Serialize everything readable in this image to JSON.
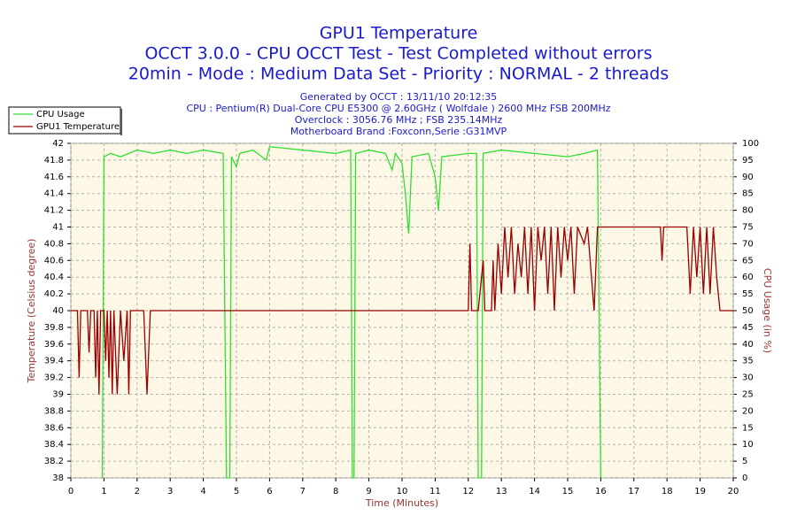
{
  "chart_data": {
    "type": "line",
    "title": "GPU1 Temperature",
    "subtitle": [
      "OCCT 3.0.0 - CPU OCCT Test - Test Completed without errors",
      "20min - Mode : Medium Data Set - Priority : NORMAL - 2 threads"
    ],
    "info": [
      "Generated by OCCT : 13/11/10 20:12:35",
      "CPU : Pentium(R) Dual-Core CPU E5300 @ 2.60GHz ( Wolfdale ) 2600 MHz FSB 200MHz",
      "Overclock : 3056.76 MHz ; FSB 235.14MHz",
      "Motherboard Brand :Foxconn,Serie :G31MVP"
    ],
    "x_label": "Time (Minutes)",
    "y_label": "Temperature (Celsius degree)",
    "y2_label": "CPU Usage (in %)",
    "xlim": [
      0,
      20
    ],
    "xticks": [
      0,
      1,
      2,
      3,
      4,
      5,
      6,
      7,
      8,
      9,
      10,
      11,
      12,
      13,
      14,
      15,
      16,
      17,
      18,
      19,
      20
    ],
    "ylim": [
      38,
      42
    ],
    "yticks": [
      38,
      38.2,
      38.4,
      38.6,
      38.8,
      39,
      39.2,
      39.4,
      39.6,
      39.8,
      40,
      40.2,
      40.4,
      40.6,
      40.8,
      41,
      41.2,
      41.4,
      41.6,
      41.8,
      42
    ],
    "y2lim": [
      0,
      100
    ],
    "y2ticks": [
      0,
      5,
      10,
      15,
      20,
      25,
      30,
      35,
      40,
      45,
      50,
      55,
      60,
      65,
      70,
      75,
      80,
      85,
      90,
      95,
      100
    ],
    "grid": true,
    "legend": "upper left",
    "series": [
      {
        "name": "CPU Usage",
        "color": "#33dd33",
        "axis": "y2",
        "x": [
          0.95,
          1.0,
          1.2,
          1.5,
          2.0,
          2.5,
          3.0,
          3.5,
          4.0,
          4.6,
          4.7,
          4.8,
          4.85,
          5.0,
          5.1,
          5.5,
          5.9,
          6.0,
          7.0,
          8.0,
          8.45,
          8.5,
          8.55,
          8.6,
          9.0,
          9.5,
          9.7,
          9.8,
          10.0,
          10.1,
          10.2,
          10.3,
          10.8,
          11.0,
          11.1,
          11.2,
          12.0,
          12.25,
          12.3,
          12.4,
          12.45,
          13.0,
          14.0,
          15.0,
          15.5,
          15.9,
          16.0
        ],
        "values": [
          0,
          96,
          97,
          96,
          98,
          97,
          98,
          97,
          98,
          97,
          0,
          0,
          96,
          93,
          97,
          98,
          95,
          99,
          98,
          97,
          98,
          0,
          0,
          97,
          98,
          97,
          92,
          97,
          94,
          85,
          73,
          96,
          97,
          90,
          80,
          96,
          97,
          97,
          0,
          0,
          97,
          98,
          97,
          96,
          97,
          98,
          0
        ]
      },
      {
        "name": "GPU1 Temperature",
        "color": "#990000",
        "axis": "y",
        "x": [
          0,
          0.2,
          0.25,
          0.3,
          0.5,
          0.55,
          0.6,
          0.7,
          0.75,
          0.8,
          0.85,
          0.9,
          1.0,
          1.05,
          1.1,
          1.15,
          1.2,
          1.25,
          1.3,
          1.4,
          1.5,
          1.6,
          1.7,
          1.75,
          1.8,
          2.2,
          2.3,
          2.4,
          12.0,
          12.05,
          12.1,
          12.3,
          12.45,
          12.5,
          12.7,
          12.75,
          12.8,
          12.9,
          13.0,
          13.1,
          13.2,
          13.3,
          13.4,
          13.5,
          13.6,
          13.7,
          13.8,
          13.9,
          14.0,
          14.1,
          14.2,
          14.3,
          14.4,
          14.5,
          14.6,
          14.7,
          14.8,
          14.9,
          15.0,
          15.1,
          15.2,
          15.3,
          15.5,
          15.6,
          15.8,
          15.9,
          17.8,
          17.85,
          17.9,
          18.6,
          18.7,
          18.8,
          18.9,
          19.0,
          19.1,
          19.2,
          19.3,
          19.4,
          19.5,
          19.6,
          20
        ],
        "values": [
          40,
          40,
          39.2,
          40,
          40,
          39.5,
          40,
          40,
          39.2,
          40,
          39,
          40,
          40,
          39.4,
          40,
          39.2,
          40,
          39,
          40,
          39,
          40,
          39.4,
          40,
          39,
          40,
          40,
          39,
          40,
          40,
          40.8,
          40,
          40,
          40.6,
          40,
          40,
          40.6,
          40,
          40.8,
          40.2,
          41,
          40.4,
          41,
          40.2,
          40.8,
          40.4,
          41,
          40.2,
          41,
          40,
          41,
          40.6,
          41,
          40.2,
          41,
          40,
          41,
          40.4,
          41,
          40.6,
          41,
          40.2,
          41,
          40.8,
          41,
          40,
          41,
          41,
          40.6,
          41,
          41,
          40.2,
          41,
          40.4,
          41,
          40.2,
          41,
          40.2,
          41,
          40.4,
          40,
          40
        ]
      }
    ]
  }
}
